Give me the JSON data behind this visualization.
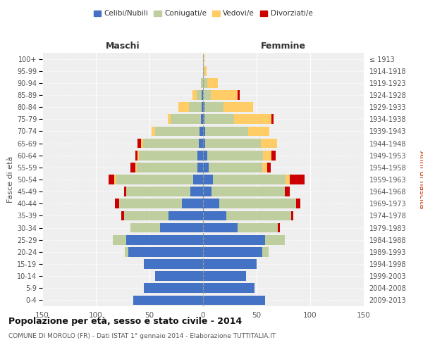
{
  "age_groups": [
    "0-4",
    "5-9",
    "10-14",
    "15-19",
    "20-24",
    "25-29",
    "30-34",
    "35-39",
    "40-44",
    "45-49",
    "50-54",
    "55-59",
    "60-64",
    "65-69",
    "70-74",
    "75-79",
    "80-84",
    "85-89",
    "90-94",
    "95-99",
    "100+"
  ],
  "birth_years": [
    "2009-2013",
    "2004-2008",
    "1999-2003",
    "1994-1998",
    "1989-1993",
    "1984-1988",
    "1979-1983",
    "1974-1978",
    "1969-1973",
    "1964-1968",
    "1959-1963",
    "1954-1958",
    "1949-1953",
    "1944-1948",
    "1939-1943",
    "1934-1938",
    "1929-1933",
    "1924-1928",
    "1919-1923",
    "1914-1918",
    "≤ 1913"
  ],
  "males": {
    "celibe": [
      65,
      55,
      45,
      55,
      70,
      72,
      40,
      32,
      20,
      12,
      9,
      5,
      5,
      4,
      3,
      2,
      1,
      1,
      0,
      0,
      0
    ],
    "coniugato": [
      0,
      0,
      0,
      0,
      3,
      12,
      28,
      42,
      58,
      60,
      72,
      57,
      55,
      52,
      42,
      28,
      12,
      5,
      2,
      0,
      0
    ],
    "vedovo": [
      0,
      0,
      0,
      0,
      0,
      0,
      0,
      0,
      0,
      0,
      2,
      1,
      1,
      2,
      3,
      3,
      10,
      4,
      0,
      0,
      0
    ],
    "divorziato": [
      0,
      0,
      0,
      0,
      0,
      0,
      0,
      2,
      4,
      2,
      5,
      5,
      2,
      3,
      0,
      0,
      0,
      0,
      0,
      0,
      0
    ]
  },
  "females": {
    "nubile": [
      58,
      48,
      40,
      50,
      55,
      58,
      32,
      22,
      15,
      8,
      9,
      5,
      4,
      2,
      2,
      1,
      1,
      0,
      0,
      0,
      0
    ],
    "coniugata": [
      0,
      0,
      0,
      0,
      6,
      18,
      38,
      60,
      72,
      68,
      68,
      50,
      52,
      52,
      40,
      28,
      18,
      7,
      4,
      1,
      0
    ],
    "vedova": [
      0,
      0,
      0,
      0,
      0,
      0,
      0,
      0,
      0,
      0,
      4,
      5,
      8,
      15,
      20,
      35,
      28,
      25,
      10,
      2,
      1
    ],
    "divorziata": [
      0,
      0,
      0,
      0,
      0,
      0,
      2,
      2,
      4,
      5,
      14,
      3,
      4,
      0,
      0,
      2,
      0,
      2,
      0,
      0,
      0
    ]
  },
  "colors": {
    "celibe": "#4472C4",
    "coniugato": "#BFCE9E",
    "vedovo": "#FFCC66",
    "divorziato": "#CC0000"
  },
  "title": "Popolazione per età, sesso e stato civile - 2014",
  "subtitle": "COMUNE DI MOROLO (FR) - Dati ISTAT 1° gennaio 2014 - Elaborazione TUTTITALIA.IT",
  "xlabel_left": "Maschi",
  "xlabel_right": "Femmine",
  "ylabel_left": "Fasce di età",
  "ylabel_right": "Anni di nascita",
  "xlim": 150,
  "legend_labels": [
    "Celibi/Nubili",
    "Coniugati/e",
    "Vedovi/e",
    "Divorziati/e"
  ],
  "background_color": "#ffffff",
  "plot_bg": "#efefef"
}
